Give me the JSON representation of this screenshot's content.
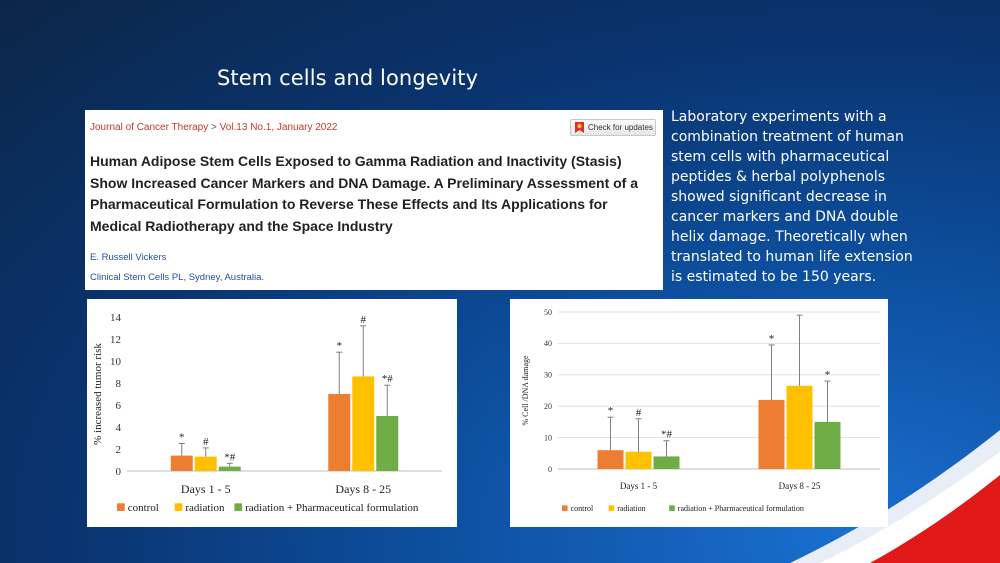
{
  "slide": {
    "title": "Stem cells and longevity"
  },
  "paper": {
    "journal": "Journal of Cancer Therapy",
    "separator": ">",
    "volume": "Vol.13 No.1, January 2022",
    "check_updates_label": "Check for updates",
    "title": "Human Adipose Stem Cells Exposed to Gamma Radiation and Inactivity (Stasis) Show Increased Cancer Markers and DNA Damage. A Preliminary Assessment of a Pharmaceutical Formulation to Reverse These Effects and Its Applications for Medical Radiotherapy and the Space Industry",
    "author": "E. Russell Vickers",
    "affiliation": "Clinical Stem Cells PL, Sydney, Australia."
  },
  "side_text": "Laboratory experiments with a combination treatment of human stem cells with pharmaceutical peptides & herbal polyphenols showed significant decrease in cancer markers and DNA double helix damage. Theoretically when translated to human life extension is estimated to be 150 years.",
  "colors": {
    "control": "#ed7d31",
    "radiation": "#ffc000",
    "formulation": "#70ad47"
  },
  "chart_data": [
    {
      "type": "bar",
      "ylabel": "% increased tumor risk",
      "xlabel": "",
      "ylim": [
        0,
        14
      ],
      "yticks": [
        0,
        2,
        4,
        6,
        8,
        10,
        12,
        14
      ],
      "categories": [
        "Days 1 - 5",
        "Days 8 - 25"
      ],
      "series": [
        {
          "name": "control",
          "color": "#ed7d31",
          "values": [
            1.4,
            7.0
          ],
          "errors": [
            1.1,
            3.8
          ],
          "marks": [
            "*",
            "*"
          ]
        },
        {
          "name": "radiation",
          "color": "#ffc000",
          "values": [
            1.3,
            8.6
          ],
          "errors": [
            0.8,
            4.6
          ],
          "marks": [
            "#",
            "#"
          ]
        },
        {
          "name": "radiation + Pharmaceutical formulation",
          "color": "#70ad47",
          "values": [
            0.4,
            5.0
          ],
          "errors": [
            0.3,
            2.8
          ],
          "marks": [
            "*#",
            "*#"
          ]
        }
      ],
      "legend_position": "bottom",
      "grid": false
    },
    {
      "type": "bar",
      "ylabel": "% Cell /DNA damage",
      "xlabel": "",
      "ylim": [
        0,
        50
      ],
      "yticks": [
        0,
        10,
        20,
        30,
        40,
        50
      ],
      "categories": [
        "Days 1 - 5",
        "Days 8 - 25"
      ],
      "series": [
        {
          "name": "control",
          "color": "#ed7d31",
          "values": [
            6,
            22
          ],
          "errors": [
            10.5,
            17.5
          ],
          "marks": [
            "*",
            "*"
          ]
        },
        {
          "name": "radiation",
          "color": "#ffc000",
          "values": [
            5.5,
            26.5
          ],
          "errors": [
            10.5,
            22.5
          ],
          "marks": [
            "#",
            ""
          ]
        },
        {
          "name": "radiation + Pharmaceutical formulation",
          "color": "#70ad47",
          "values": [
            4,
            15
          ],
          "errors": [
            5,
            13
          ],
          "marks": [
            "*#",
            "*"
          ]
        }
      ],
      "legend_position": "bottom",
      "grid": true
    }
  ]
}
